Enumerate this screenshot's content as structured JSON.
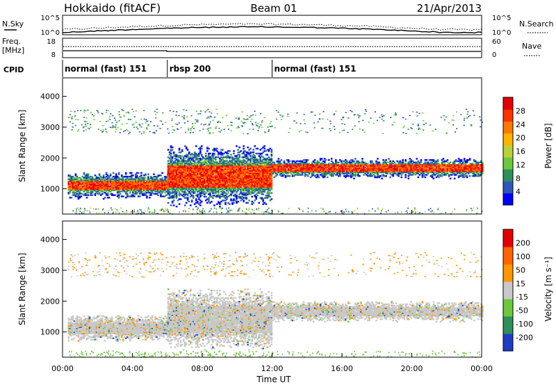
{
  "header": {
    "station": "Hokkaido (fitACF)",
    "beam": "Beam 01",
    "date": "21/Apr/2013"
  },
  "strip_labels": {
    "nsky": "N.Sky",
    "nsky_ticks": [
      "10^5",
      "10^0"
    ],
    "nsearch": "N.Search",
    "nsearch_ticks": [
      "10^5",
      "10^0"
    ],
    "freq_l1": "Freq.",
    "freq_l2": "[MHz]",
    "freq_ticks": [
      "18",
      "8"
    ],
    "nave": "Nave",
    "nave_ticks": [
      "60",
      "0"
    ],
    "cpid": "CPID"
  },
  "cpid_segments": [
    {
      "label": "normal (fast) 151",
      "start": 0,
      "end": 6
    },
    {
      "label": "rbsp 200",
      "start": 6,
      "end": 12
    },
    {
      "label": "normal (fast) 151",
      "start": 12,
      "end": 24
    }
  ],
  "x_axis": {
    "label": "Time UT",
    "ticks": [
      "00:00",
      "04:00",
      "08:00",
      "12:00",
      "16:00",
      "20:00",
      "00:00"
    ],
    "range_hours": [
      0,
      24
    ]
  },
  "chart_data": [
    {
      "type": "heatmap",
      "ylabel": "Slant Range [km]",
      "yticks": [
        "4000",
        "3000",
        "2000",
        "1000"
      ],
      "ylim": [
        180,
        4600
      ],
      "colorbar_label": "Power [dB]",
      "colorbar_ticks": [
        "28",
        "24",
        "20",
        "16",
        "12",
        "8",
        "4"
      ],
      "colorbar_colors": [
        "#0000ff",
        "#2d57b8",
        "#2d8f5a",
        "#6cc83c",
        "#b8d23c",
        "#ffb400",
        "#ff7800",
        "#ff3200",
        "#e60000"
      ],
      "echo_bands": [
        {
          "start": 0.3,
          "end": 6,
          "center_km": 1100,
          "halfwidth_km": 200,
          "power_db": 24
        },
        {
          "start": 6,
          "end": 12,
          "center_km": 1400,
          "halfwidth_km": 450,
          "power_db": 26
        },
        {
          "start": 12,
          "end": 24,
          "center_km": 1650,
          "halfwidth_km": 150,
          "power_db": 22
        }
      ]
    },
    {
      "type": "heatmap",
      "ylabel": "Slant Range [km]",
      "yticks": [
        "4000",
        "3000",
        "2000",
        "1000"
      ],
      "ylim": [
        180,
        4600
      ],
      "colorbar_label": "Velocity [m s⁻¹]",
      "colorbar_ticks": [
        "200",
        "100",
        "50",
        "15",
        "-15",
        "-50",
        "-100",
        "-200"
      ],
      "colorbar_colors": [
        "#1e3cc8",
        "#2d8f5a",
        "#6cc83c",
        "#c8c8c8",
        "#ff9600",
        "#ff6400",
        "#e60000"
      ],
      "echo_bands": [
        {
          "start": 0.3,
          "end": 6,
          "center_km": 1100,
          "halfwidth_km": 200,
          "velocity": 0
        },
        {
          "start": 6,
          "end": 12,
          "center_km": 1400,
          "halfwidth_km": 450,
          "velocity": 0
        },
        {
          "start": 12,
          "end": 24,
          "center_km": 1650,
          "halfwidth_km": 150,
          "velocity": 0
        }
      ]
    }
  ]
}
